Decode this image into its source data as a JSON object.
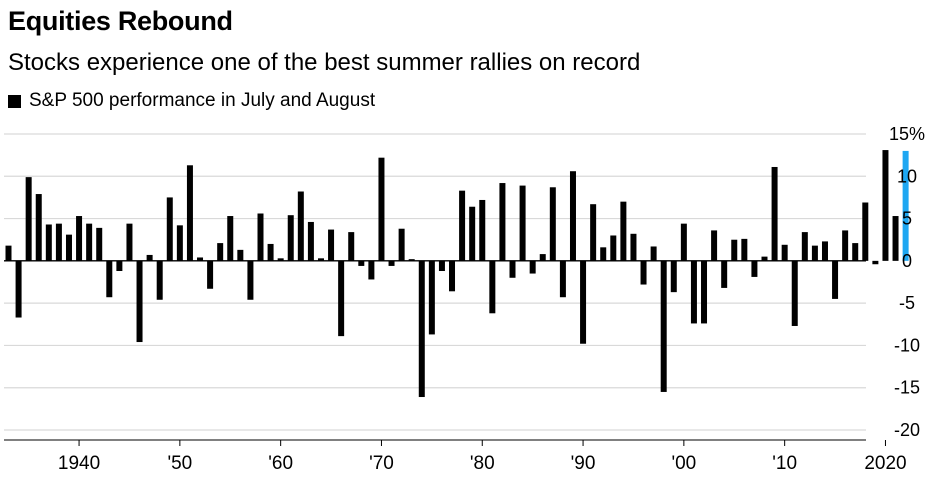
{
  "title": "Equities Rebound",
  "subtitle": "Stocks experience one of the best summer rallies on record",
  "legend": {
    "label": "S&P 500 performance in July and August",
    "color": "#000000"
  },
  "chart_data": {
    "type": "bar",
    "title": "Equities Rebound",
    "subtitle": "Stocks experience one of the best summer rallies on record",
    "xlabel": "",
    "ylabel": "S&P 500 performance in July and August (%)",
    "ylim": [
      -20,
      15
    ],
    "yticks": [
      15,
      10,
      5,
      0,
      -5,
      -10,
      -15,
      -20
    ],
    "ytick_labels": [
      "15%",
      "10",
      "5",
      "0",
      "-5",
      "-10",
      "-15",
      "-20"
    ],
    "xticks": [
      1940,
      1950,
      1960,
      1970,
      1980,
      1990,
      2000,
      2010,
      2020
    ],
    "xtick_labels": [
      "1940",
      "'50",
      "'60",
      "'70",
      "'80",
      "'90",
      "'00",
      "'10",
      "2020"
    ],
    "highlight_year": 2022,
    "bar_color": "#000000",
    "highlight_color": "#1ea7f2",
    "grid": true,
    "years": [
      1933,
      1934,
      1935,
      1936,
      1937,
      1938,
      1939,
      1940,
      1941,
      1942,
      1943,
      1944,
      1945,
      1946,
      1947,
      1948,
      1949,
      1950,
      1951,
      1952,
      1953,
      1954,
      1955,
      1956,
      1957,
      1958,
      1959,
      1960,
      1961,
      1962,
      1963,
      1964,
      1965,
      1966,
      1967,
      1968,
      1969,
      1970,
      1971,
      1972,
      1973,
      1974,
      1975,
      1976,
      1977,
      1978,
      1979,
      1980,
      1981,
      1982,
      1983,
      1984,
      1985,
      1986,
      1987,
      1988,
      1989,
      1990,
      1991,
      1992,
      1993,
      1994,
      1995,
      1996,
      1997,
      1998,
      1999,
      2000,
      2001,
      2002,
      2003,
      2004,
      2005,
      2006,
      2007,
      2008,
      2009,
      2010,
      2011,
      2012,
      2013,
      2014,
      2015,
      2016,
      2017,
      2018,
      2019,
      2020,
      2021,
      2022
    ],
    "values": [
      1.8,
      -6.7,
      9.9,
      7.9,
      4.3,
      4.4,
      3.1,
      5.3,
      4.4,
      3.9,
      -4.3,
      -1.2,
      4.4,
      -9.6,
      0.7,
      -4.6,
      7.5,
      4.2,
      11.3,
      0.4,
      -3.3,
      2.1,
      5.3,
      1.3,
      -4.6,
      5.6,
      2.0,
      0.3,
      5.4,
      8.2,
      4.6,
      0.3,
      3.7,
      -8.9,
      3.4,
      -0.6,
      -2.2,
      12.2,
      -0.6,
      3.8,
      0.2,
      -16.1,
      -8.7,
      -1.2,
      -3.6,
      8.3,
      6.4,
      7.2,
      -6.2,
      9.2,
      -2.0,
      8.9,
      -1.5,
      0.8,
      8.7,
      -4.3,
      10.6,
      -9.8,
      6.7,
      1.6,
      3.0,
      7.0,
      3.2,
      -2.8,
      1.7,
      -15.5,
      -3.7,
      4.4,
      -7.4,
      -7.4,
      3.6,
      -3.2,
      2.5,
      2.6,
      -1.9,
      0.5,
      11.1,
      1.9,
      -7.7,
      3.4,
      1.8,
      2.3,
      -4.5,
      3.6,
      2.1,
      6.9,
      -0.4,
      13.1,
      5.3,
      13.0
    ]
  }
}
